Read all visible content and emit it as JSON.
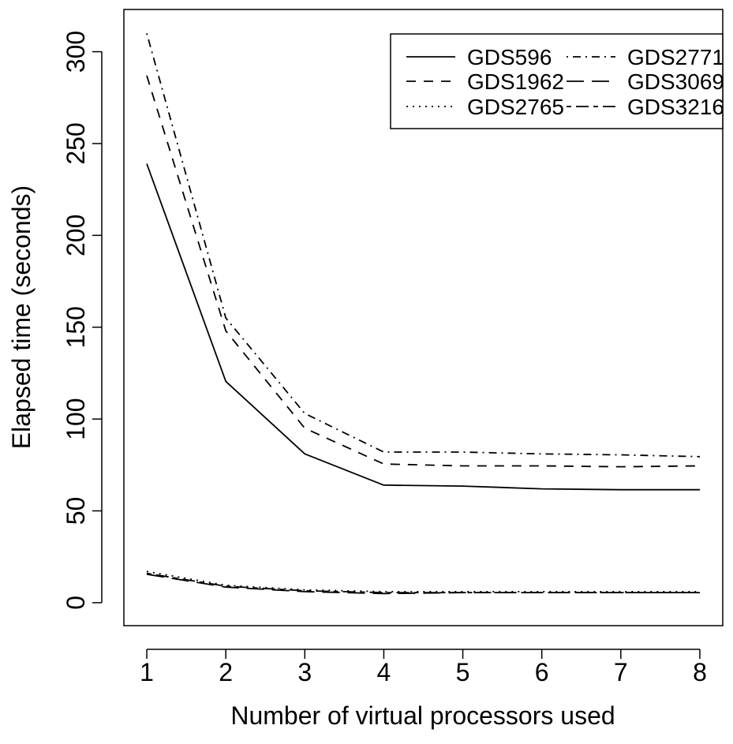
{
  "chart_data": {
    "type": "line",
    "title": "",
    "xlabel": "Number of virtual processors used",
    "ylabel": "Elapsed time (seconds)",
    "x": [
      1,
      2,
      3,
      4,
      5,
      6,
      7,
      8
    ],
    "xlim": [
      0.71,
      8.29
    ],
    "ylim": [
      -12.5,
      323
    ],
    "x_ticks": [
      1,
      2,
      3,
      4,
      5,
      6,
      7,
      8
    ],
    "y_ticks": [
      0,
      50,
      100,
      150,
      200,
      250,
      300
    ],
    "grid": false,
    "legend_position": "top-right",
    "legend_columns": 2,
    "line_color": "#000000",
    "series": [
      {
        "name": "GDS596",
        "linestyle": "solid",
        "values": [
          239,
          120.5,
          81,
          64,
          63.5,
          62,
          61.5,
          61.5
        ]
      },
      {
        "name": "GDS1962",
        "linestyle": "dashed",
        "values": [
          287,
          148,
          95,
          75.5,
          74.5,
          74.5,
          74,
          74.5
        ]
      },
      {
        "name": "GDS2765",
        "linestyle": "dotted",
        "values": [
          17,
          9.5,
          7,
          6,
          6,
          6,
          6,
          6
        ]
      },
      {
        "name": "GDS2771",
        "linestyle": "dotdash",
        "values": [
          310,
          155,
          103,
          82,
          82,
          81,
          80.5,
          79.5
        ]
      },
      {
        "name": "GDS3069",
        "linestyle": "longdash",
        "values": [
          15.5,
          8.5,
          6,
          5,
          5.5,
          5.5,
          5.5,
          5.5
        ]
      },
      {
        "name": "GDS3216",
        "linestyle": "twodash",
        "values": [
          16,
          9,
          6.5,
          5.5,
          5.5,
          5.5,
          5.5,
          5.5
        ]
      }
    ]
  }
}
